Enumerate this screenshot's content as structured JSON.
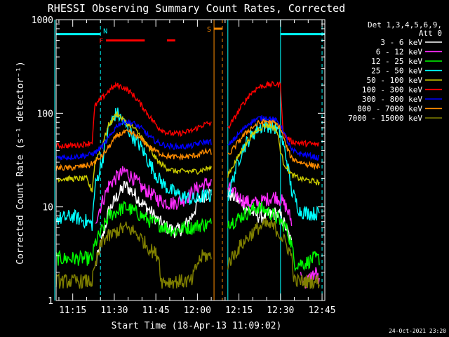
{
  "chart_data": {
    "type": "line",
    "title": "RHESSI Observing Summary Count Rates, Corrected",
    "xlabel": "Start Time (18-Apr-13 11:09:02)",
    "ylabel": "Corrected Count Rate (s⁻¹ detector⁻¹)",
    "yscale": "log",
    "ylim": [
      1,
      1000
    ],
    "xlim_minutes": [
      0,
      97
    ],
    "x_ticks": [
      {
        "label": "11:15",
        "min": 6
      },
      {
        "label": "11:30",
        "min": 21
      },
      {
        "label": "11:45",
        "min": 36
      },
      {
        "label": "12:00",
        "min": 51
      },
      {
        "label": "12:15",
        "min": 66
      },
      {
        "label": "12:30",
        "min": 81
      },
      {
        "label": "12:45",
        "min": 96
      }
    ],
    "y_ticks": [
      {
        "label": "1",
        "v": 1
      },
      {
        "label": "10",
        "v": 10
      },
      {
        "label": "100",
        "v": 100
      },
      {
        "label": "1000",
        "v": 1000
      }
    ],
    "legend_header": [
      "Det 1,3,4,5,6,9,",
      "Att 0"
    ],
    "timestamp": "24-Oct-2021 23:20",
    "gap_minutes": [
      56,
      62
    ],
    "series": [
      {
        "name": "3 - 6 keV",
        "color": "#ffffff",
        "x": [
          0,
          13,
          14,
          17,
          19,
          22,
          25,
          28,
          31,
          34,
          37,
          40,
          43,
          46,
          49,
          51,
          53,
          55,
          62,
          64,
          67,
          70,
          73,
          76,
          79,
          81,
          83,
          84,
          85,
          86
        ],
        "values": [
          null,
          null,
          2.2,
          5,
          9,
          13,
          17,
          14,
          11,
          9,
          7,
          6,
          5.5,
          6,
          8,
          11,
          13,
          14,
          14,
          13,
          11,
          9,
          8,
          8,
          8.5,
          8,
          6,
          5,
          4,
          null
        ]
      },
      {
        "name": "6 - 12 keV",
        "color": "#ff2cff",
        "x": [
          0,
          13,
          14,
          17,
          19,
          22,
          25,
          28,
          31,
          34,
          37,
          40,
          43,
          46,
          49,
          51,
          53,
          55,
          62,
          64,
          67,
          70,
          73,
          76,
          79,
          81,
          83,
          85,
          86,
          88,
          90,
          92,
          94,
          95
        ],
        "values": [
          null,
          null,
          7,
          12,
          17,
          21,
          24,
          20,
          16,
          14,
          12,
          11,
          11,
          12,
          14,
          16,
          17,
          18,
          16,
          14,
          12,
          11,
          11,
          12,
          13,
          12,
          10,
          7,
          null,
          2,
          1.5,
          1.8,
          2,
          1.5
        ]
      },
      {
        "name": "12 - 25 keV",
        "color": "#00ff00",
        "x": [
          0,
          1,
          10,
          13,
          14,
          17,
          19,
          22,
          25,
          28,
          31,
          34,
          37,
          40,
          43,
          46,
          49,
          51,
          53,
          55,
          62,
          64,
          67,
          70,
          73,
          76,
          79,
          81,
          83,
          85,
          86,
          90,
          93,
          95
        ],
        "values": [
          2.8,
          2.8,
          2.8,
          2.8,
          4,
          6,
          8,
          9,
          10,
          9,
          8,
          7,
          6.5,
          6,
          5.5,
          6,
          6,
          6.3,
          6.5,
          6.5,
          7,
          7,
          8,
          9,
          10,
          9,
          8,
          7,
          6,
          4,
          2.5,
          2.5,
          2.8,
          2.8
        ]
      },
      {
        "name": "25 - 50 keV",
        "color": "#00ffff",
        "x": [
          0,
          2,
          6,
          8,
          11,
          13,
          14,
          17,
          19,
          21,
          22,
          25,
          28,
          31,
          34,
          37,
          40,
          43,
          46,
          49,
          51,
          53,
          55,
          62,
          63,
          65,
          67,
          70,
          73,
          76,
          79,
          80,
          81,
          83,
          85,
          88,
          92,
          95
        ],
        "values": [
          7.5,
          7.5,
          8,
          7.5,
          7,
          6.5,
          16,
          35,
          70,
          95,
          100,
          75,
          55,
          42,
          28,
          20,
          16,
          14,
          13,
          12,
          12,
          13,
          13,
          13,
          16,
          26,
          40,
          55,
          70,
          75,
          70,
          65,
          60,
          35,
          15,
          9,
          8.5,
          8.5
        ]
      },
      {
        "name": "50 - 100 keV",
        "color": "#cccc00",
        "x": [
          0,
          6,
          9,
          11,
          12,
          13,
          14,
          17,
          19,
          21,
          22,
          25,
          28,
          31,
          34,
          37,
          40,
          43,
          46,
          49,
          51,
          53,
          55,
          62,
          64,
          67,
          70,
          73,
          76,
          79,
          80,
          81,
          82,
          85,
          88,
          92,
          95
        ],
        "values": [
          20,
          20,
          20,
          20,
          17,
          15,
          30,
          50,
          75,
          90,
          100,
          80,
          70,
          55,
          40,
          30,
          26,
          24,
          24,
          24,
          24,
          25,
          26,
          22,
          28,
          40,
          55,
          68,
          75,
          70,
          60,
          40,
          30,
          22,
          20,
          19,
          18
        ]
      },
      {
        "name": "100 - 300 keV",
        "color": "#ff0000",
        "x": [
          0,
          5,
          9,
          12,
          13,
          14,
          17,
          20,
          22,
          25,
          28,
          31,
          34,
          37,
          40,
          43,
          46,
          49,
          51,
          53,
          55,
          62,
          64,
          67,
          70,
          73,
          76,
          79,
          81,
          82,
          85,
          88,
          92,
          95
        ],
        "values": [
          45,
          45,
          46,
          48,
          50,
          120,
          150,
          185,
          200,
          185,
          155,
          120,
          90,
          70,
          62,
          60,
          62,
          65,
          70,
          75,
          78,
          70,
          85,
          120,
          160,
          190,
          200,
          205,
          200,
          60,
          50,
          48,
          47,
          46
        ]
      },
      {
        "name": "300 - 800 keV",
        "color": "#0000ff",
        "x": [
          0,
          5,
          9,
          12,
          14,
          17,
          20,
          22,
          25,
          28,
          31,
          34,
          37,
          40,
          43,
          46,
          49,
          51,
          53,
          55,
          62,
          64,
          67,
          70,
          73,
          76,
          79,
          81,
          83,
          85,
          88,
          92,
          95
        ],
        "values": [
          34,
          34,
          35,
          36,
          38,
          45,
          60,
          75,
          82,
          78,
          68,
          55,
          48,
          45,
          44,
          44,
          45,
          47,
          49,
          50,
          44,
          52,
          65,
          80,
          88,
          90,
          85,
          75,
          55,
          40,
          37,
          35,
          33
        ]
      },
      {
        "name": "800 - 7000 keV",
        "color": "#ff8c00",
        "x": [
          0,
          5,
          9,
          12,
          14,
          17,
          20,
          22,
          25,
          28,
          31,
          34,
          37,
          40,
          43,
          46,
          49,
          51,
          53,
          55,
          62,
          64,
          67,
          70,
          73,
          76,
          79,
          81,
          83,
          85,
          88,
          92,
          95
        ],
        "values": [
          26,
          26,
          27,
          28,
          30,
          36,
          48,
          58,
          63,
          60,
          52,
          43,
          38,
          35,
          34,
          34,
          35,
          36,
          38,
          39,
          35,
          42,
          55,
          68,
          78,
          82,
          78,
          70,
          45,
          33,
          30,
          28,
          27
        ]
      },
      {
        "name": "7000 - 15000 keV",
        "color": "#808000",
        "x": [
          0,
          1,
          10,
          13,
          15,
          17,
          20,
          22,
          25,
          28,
          31,
          34,
          37,
          38,
          46,
          49,
          51,
          53,
          55,
          62,
          64,
          67,
          70,
          73,
          76,
          79,
          81,
          83,
          85,
          86,
          90,
          93,
          95
        ],
        "values": [
          1.6,
          1.6,
          1.6,
          1.6,
          3,
          4.5,
          5,
          5.5,
          6,
          5.5,
          4.5,
          3.5,
          3,
          1.6,
          1.6,
          1.6,
          2.5,
          3,
          3,
          2.5,
          3,
          4,
          5,
          6,
          6.5,
          6,
          5,
          4,
          3,
          1.6,
          1.6,
          1.6,
          1.6
        ]
      }
    ],
    "flag_lines": [
      {
        "label": "N",
        "color": "#00ffff",
        "y_level": 700,
        "segments": [
          [
            0,
            16
          ],
          [
            81,
            97
          ]
        ]
      },
      {
        "label": "F",
        "color": "#ff0000",
        "y_level": 600,
        "segments": [
          [
            18,
            32
          ],
          [
            40,
            43
          ]
        ]
      },
      {
        "label": "S",
        "color": "#ff8c00",
        "y_level": 800,
        "segments": [
          [
            57,
            60
          ]
        ]
      }
    ],
    "vlines": [
      {
        "min": -0.5,
        "color": "#00ffff",
        "style": "solid"
      },
      {
        "min": 16,
        "color": "#00ffff",
        "style": "dash"
      },
      {
        "min": 57,
        "color": "#ff8c00",
        "style": "solid"
      },
      {
        "min": 60,
        "color": "#ff8c00",
        "style": "dash"
      },
      {
        "min": 62,
        "color": "#00ffff",
        "style": "solid"
      },
      {
        "min": 81,
        "color": "#00ffff",
        "style": "solid"
      },
      {
        "min": 96,
        "color": "#00ffff",
        "style": "dash"
      }
    ]
  }
}
